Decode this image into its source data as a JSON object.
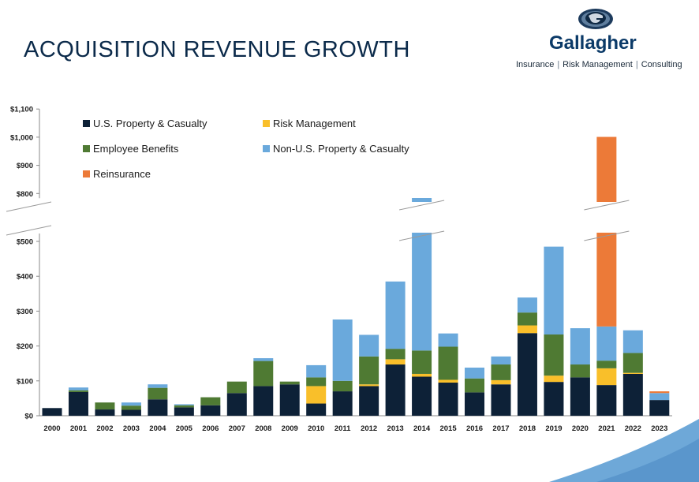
{
  "header": {
    "title": "ACQUISITION REVENUE GROWTH",
    "brand": "Gallagher",
    "tagline": [
      "Insurance",
      "Risk Management",
      "Consulting"
    ]
  },
  "colors": {
    "us_pc": "#0d2137",
    "risk": "#f9bf2a",
    "benefits": "#4f7a33",
    "non_us": "#6aa9dc",
    "reinsurance": "#ec7a38",
    "title": "#0b2a4a"
  },
  "chart_data": {
    "type": "bar",
    "stacked": true,
    "categories": [
      "2000",
      "2001",
      "2002",
      "2003",
      "2004",
      "2005",
      "2006",
      "2007",
      "2008",
      "2009",
      "2010",
      "2011",
      "2012",
      "2013",
      "2014",
      "2015",
      "2016",
      "2017",
      "2018",
      "2019",
      "2020",
      "2021",
      "2022",
      "2023"
    ],
    "series": [
      {
        "name": "U.S. Property & Casualty",
        "color": "#0d2137",
        "values": [
          22,
          68,
          18,
          17,
          47,
          24,
          30,
          65,
          85,
          90,
          35,
          70,
          85,
          147,
          112,
          95,
          67,
          90,
          237,
          97,
          110,
          88,
          120,
          45
        ]
      },
      {
        "name": "Risk Management",
        "color": "#f9bf2a",
        "values": [
          0,
          0,
          0,
          0,
          0,
          0,
          0,
          0,
          0,
          0,
          50,
          0,
          5,
          15,
          8,
          8,
          0,
          12,
          22,
          18,
          0,
          48,
          3,
          0
        ]
      },
      {
        "name": "Employee Benefits",
        "color": "#4f7a33",
        "values": [
          0,
          5,
          20,
          12,
          33,
          6,
          23,
          33,
          72,
          8,
          25,
          30,
          80,
          30,
          67,
          95,
          40,
          45,
          37,
          118,
          37,
          22,
          57,
          0
        ]
      },
      {
        "name": "Non-U.S. Property & Casualty",
        "color": "#6aa9dc",
        "values": [
          0,
          8,
          0,
          9,
          10,
          3,
          0,
          0,
          8,
          0,
          35,
          176,
          62,
          193,
          597,
          38,
          31,
          23,
          43,
          252,
          104,
          98,
          65,
          20
        ]
      },
      {
        "name": "Reinsurance",
        "color": "#ec7a38",
        "values": [
          0,
          0,
          0,
          0,
          0,
          0,
          0,
          0,
          0,
          0,
          0,
          0,
          0,
          0,
          0,
          0,
          0,
          0,
          0,
          0,
          0,
          745,
          0,
          5
        ]
      }
    ],
    "y_ticks_lower": [
      "$0",
      "$100",
      "$200",
      "$300",
      "$400",
      "$500"
    ],
    "y_ticks_upper": [
      "$800",
      "$900",
      "$1,000",
      "$1,100"
    ],
    "ylim": [
      0,
      1100
    ],
    "axis_break": [
      525,
      770
    ],
    "legend": "top-left, two columns",
    "grid": false
  }
}
